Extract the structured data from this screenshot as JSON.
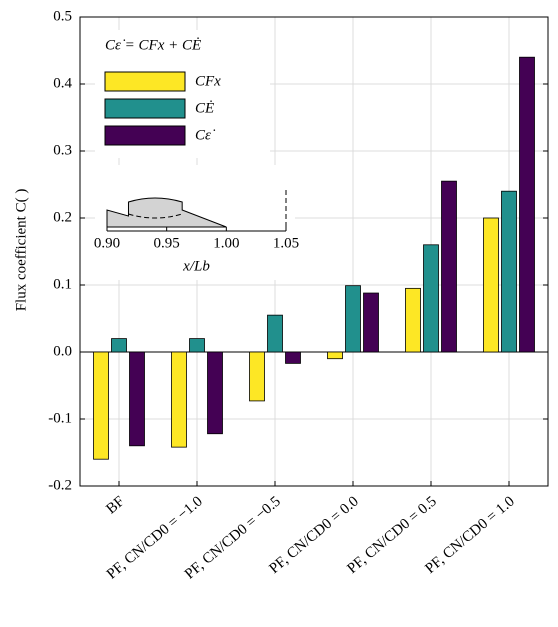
{
  "chart_data": {
    "type": "bar",
    "ylabel": "Flux coefficient C( )",
    "legend_title": "Cε̇ = CFx + CĖ",
    "categories": [
      "BF",
      "PF, CN/CD0 = −1.0",
      "PF, CN/CD0 = −0.5",
      "PF, CN/CD0 = 0.0",
      "PF, CN/CD0 = 0.5",
      "PF, CN/CD0 = 1.0"
    ],
    "series": [
      {
        "name": "CFx",
        "color": "#fde725",
        "values": [
          -0.16,
          -0.142,
          -0.073,
          -0.01,
          0.095,
          0.2
        ]
      },
      {
        "name": "CĖ",
        "color": "#21908d",
        "values": [
          0.02,
          0.02,
          0.055,
          0.099,
          0.16,
          0.24
        ]
      },
      {
        "name": "Cε̇",
        "color": "#440154",
        "values": [
          -0.14,
          -0.122,
          -0.017,
          0.088,
          0.255,
          0.44
        ]
      }
    ],
    "ylim": [
      -0.2,
      0.5
    ],
    "yticks": [
      -0.2,
      -0.1,
      {
        "value": 0,
        "label": "0.0"
      },
      0.1,
      0.2,
      0.3,
      0.4,
      0.5
    ],
    "grid": true,
    "inset": {
      "xlabel": "x/Lb",
      "xlim": [
        0.9,
        1.05
      ],
      "xticks": [
        {
          "value": 0.9,
          "label": "0.90"
        },
        {
          "value": 0.95,
          "label": "0.95"
        },
        {
          "value": 1.0,
          "label": "1.00"
        },
        {
          "value": 1.05,
          "label": "1.05"
        }
      ]
    }
  }
}
